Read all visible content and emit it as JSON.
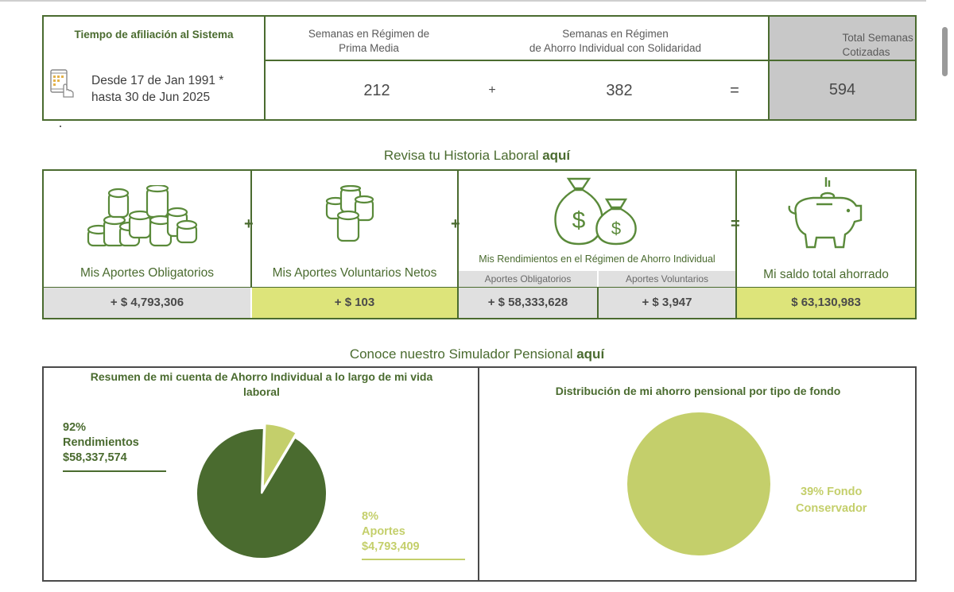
{
  "afiliacion": {
    "title": "Tiempo de afiliación al Sistema",
    "desde": "Desde 17 de Jan 1991 *",
    "hasta": "hasta 30 de Jun 2025",
    "prima_media_header_1": "Semanas en Régimen de",
    "prima_media_header_2": "Prima Media",
    "ahorro_header_1": "Semanas en Régimen",
    "ahorro_header_2": "de Ahorro Individual con Solidaridad",
    "total_header_1": "Total Semanas",
    "total_header_2": "Cotizadas",
    "semanas_prima_media": "212",
    "plus": "+",
    "semanas_ahorro": "382",
    "equals": "=",
    "total_semanas": "594"
  },
  "historia_link": {
    "text": "Revisa tu Historia Laboral ",
    "bold": "aquí"
  },
  "aportes": {
    "obligatorios_label": "Mis Aportes Obligatorios",
    "obligatorios_value": "+ $ 4,793,306",
    "voluntarios_label": "Mis Aportes Voluntarios Netos",
    "voluntarios_value": "+ $ 103",
    "rendimientos_label": "Mis Rendimientos en el Régimen de Ahorro Individual",
    "rend_oblig_header": "Aportes Obligatorios",
    "rend_oblig_value": "+ $ 58,333,628",
    "rend_vol_header": "Aportes Voluntarios",
    "rend_vol_value": "+ $ 3,947",
    "saldo_label": "Mi saldo total ahorrado",
    "saldo_value": "$ 63,130,983",
    "plus": "+",
    "equals": "="
  },
  "simulador_link": {
    "text": "Conoce nuestro Simulador Pensional ",
    "bold": "aquí"
  },
  "resumen": {
    "title_1": "Resumen de mi cuenta de Ahorro Individual a lo largo de mi vida",
    "title_2": "laboral",
    "rend_pct": "92%",
    "rend_label": "Rendimientos",
    "rend_value": "$58,337,574",
    "aport_pct": "8%",
    "aport_label": "Aportes",
    "aport_value": "$4,793,409"
  },
  "distribucion": {
    "title": "Distribución de mi ahorro pensional por tipo de fondo",
    "line_1": "39% Fondo",
    "line_2": "Conservador"
  },
  "chart_data": [
    {
      "type": "pie",
      "categories": [
        "Rendimientos",
        "Aportes"
      ],
      "values": [
        92,
        8
      ],
      "colors": [
        "#4a6b2f",
        "#c4cf6b"
      ]
    },
    {
      "type": "pie",
      "categories": [
        "Fondo Conservador"
      ],
      "values": [
        39
      ],
      "colors": [
        "#c4cf6b"
      ]
    }
  ],
  "colors": {
    "accent": "#4a6b2f",
    "lime": "#dde47a",
    "pie_light": "#c4cf6b",
    "gray": "#e0e0e0"
  }
}
